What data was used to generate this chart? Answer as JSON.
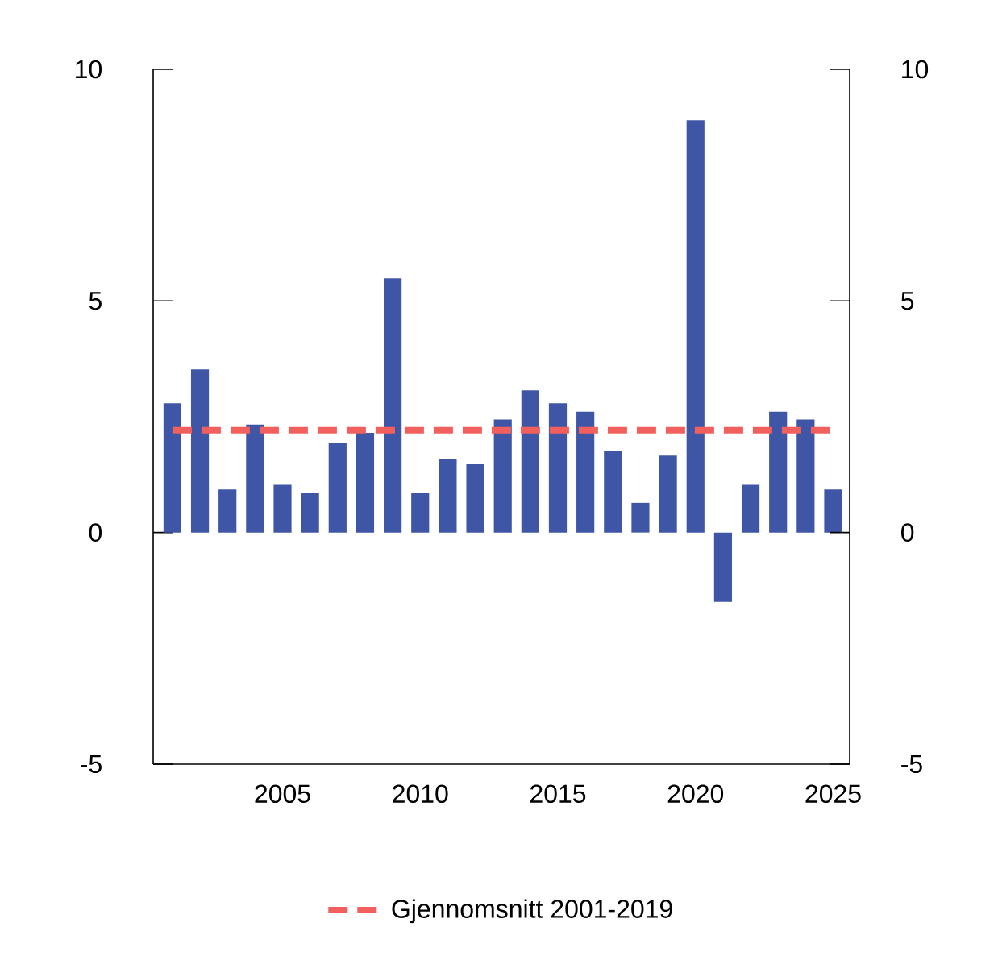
{
  "chart_data": {
    "type": "bar",
    "x": [
      2001,
      2002,
      2003,
      2004,
      2005,
      2006,
      2007,
      2008,
      2009,
      2010,
      2011,
      2012,
      2013,
      2014,
      2015,
      2016,
      2017,
      2018,
      2019,
      2020,
      2021,
      2022,
      2023,
      2024,
      2025
    ],
    "values": [
      2.79,
      3.52,
      0.93,
      2.33,
      1.03,
      0.85,
      1.94,
      2.15,
      5.49,
      0.85,
      1.59,
      1.49,
      2.44,
      3.07,
      2.79,
      2.61,
      1.77,
      0.64,
      1.66,
      8.9,
      -1.5,
      1.03,
      2.61,
      2.44,
      0.93
    ],
    "color": "#3f56a6",
    "xlim": [
      2000.3,
      2025.6
    ],
    "xticks": [
      2005,
      2010,
      2015,
      2020,
      2025
    ],
    "ylim": [
      -5,
      10
    ],
    "yticks": [
      -5,
      0,
      5,
      10
    ],
    "y2lim": [
      -5,
      10
    ],
    "y2ticks": [
      -5,
      0,
      5,
      10
    ],
    "ref_lines": [
      {
        "axis": "y",
        "value": 2.21,
        "label": "Gjennomsnitt 2001-2019",
        "color": "#f2605e",
        "line_style": "dashed"
      }
    ],
    "legend": "bottom"
  }
}
